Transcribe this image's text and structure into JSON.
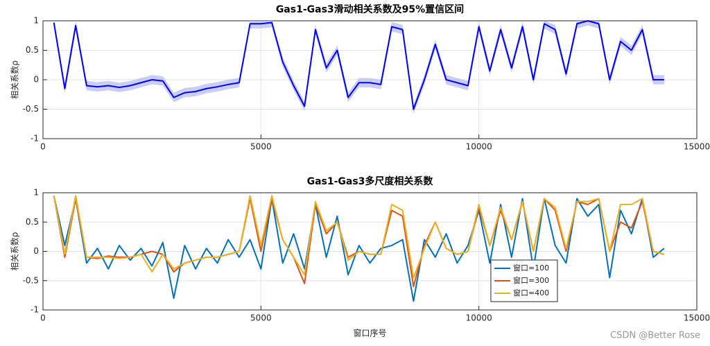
{
  "chart_data": [
    {
      "type": "line",
      "title": "Gas1-Gas3滑动相关系数及95%置信区间",
      "ylabel": "相关系数ρ",
      "x": [
        250,
        500,
        750,
        1000,
        1250,
        1500,
        1750,
        2000,
        2250,
        2500,
        2750,
        3000,
        3250,
        3500,
        3750,
        4000,
        4250,
        4500,
        4750,
        5000,
        5250,
        5500,
        5750,
        6000,
        6250,
        6500,
        6750,
        7000,
        7250,
        7500,
        7750,
        8000,
        8250,
        8500,
        8750,
        9000,
        9250,
        9500,
        9750,
        10000,
        10250,
        10500,
        10750,
        11000,
        11250,
        11500,
        11750,
        12000,
        12250,
        12500,
        12750,
        13000,
        13250,
        13500,
        13750,
        14000,
        14250
      ],
      "series": [
        {
          "color": "#0000ff",
          "values": [
            0.97,
            -0.15,
            0.92,
            -0.1,
            -0.12,
            -0.1,
            -0.13,
            -0.1,
            -0.05,
            0.0,
            -0.02,
            -0.3,
            -0.22,
            -0.2,
            -0.15,
            -0.12,
            -0.08,
            -0.05,
            0.95,
            0.95,
            0.97,
            0.3,
            -0.1,
            -0.45,
            0.85,
            0.2,
            0.5,
            -0.3,
            -0.05,
            -0.05,
            -0.08,
            0.9,
            0.85,
            -0.5,
            0.0,
            0.6,
            0.0,
            -0.05,
            -0.1,
            0.9,
            0.15,
            0.85,
            0.2,
            0.9,
            0.0,
            0.95,
            0.85,
            0.1,
            0.95,
            1.0,
            0.95,
            0.0,
            0.65,
            0.5,
            0.85,
            0.0,
            0.0
          ]
        }
      ],
      "band": {
        "color": "#b4b8f4",
        "upper": [
          1.0,
          -0.07,
          1.0,
          -0.02,
          -0.04,
          -0.02,
          -0.05,
          -0.02,
          0.03,
          0.08,
          0.06,
          -0.22,
          -0.14,
          -0.12,
          -0.07,
          -0.04,
          0.0,
          0.03,
          1.0,
          1.0,
          1.0,
          0.38,
          -0.02,
          -0.37,
          0.93,
          0.28,
          0.58,
          -0.22,
          0.03,
          0.03,
          0.0,
          0.98,
          0.93,
          -0.42,
          0.08,
          0.68,
          0.08,
          0.03,
          -0.02,
          0.98,
          0.23,
          0.93,
          0.28,
          0.98,
          0.08,
          1.0,
          0.93,
          0.18,
          1.0,
          1.0,
          1.0,
          0.08,
          0.73,
          0.58,
          0.93,
          0.08,
          0.08
        ],
        "lower": [
          0.89,
          -0.23,
          0.84,
          -0.18,
          -0.2,
          -0.18,
          -0.21,
          -0.18,
          -0.13,
          -0.08,
          -0.1,
          -0.38,
          -0.3,
          -0.28,
          -0.23,
          -0.2,
          -0.16,
          -0.13,
          0.87,
          0.87,
          0.89,
          0.22,
          -0.18,
          -0.53,
          0.77,
          0.12,
          0.42,
          -0.38,
          -0.13,
          -0.13,
          -0.16,
          0.82,
          0.77,
          -0.58,
          -0.08,
          0.52,
          -0.08,
          -0.13,
          -0.18,
          0.82,
          0.07,
          0.77,
          0.12,
          0.82,
          -0.08,
          0.87,
          0.77,
          0.02,
          0.87,
          0.92,
          0.87,
          -0.08,
          0.57,
          0.42,
          0.77,
          -0.08,
          -0.08
        ]
      },
      "xlim": [
        0,
        15000
      ],
      "xticks": [
        0,
        5000,
        10000,
        15000
      ],
      "ylim": [
        -1,
        1
      ],
      "yticks": [
        -1,
        -0.5,
        0,
        0.5,
        1
      ],
      "grid": true
    },
    {
      "type": "line",
      "title": "Gas1-Gas3多尺度相关系数",
      "ylabel": "相关系数ρ",
      "xlabel": "窗口序号",
      "x": [
        250,
        500,
        750,
        1000,
        1250,
        1500,
        1750,
        2000,
        2250,
        2500,
        2750,
        3000,
        3250,
        3500,
        3750,
        4000,
        4250,
        4500,
        4750,
        5000,
        5250,
        5500,
        5750,
        6000,
        6250,
        6500,
        6750,
        7000,
        7250,
        7500,
        7750,
        8000,
        8250,
        8500,
        8750,
        9000,
        9250,
        9500,
        9750,
        10000,
        10250,
        10500,
        10750,
        11000,
        11250,
        11500,
        11750,
        12000,
        12250,
        12500,
        12750,
        13000,
        13250,
        13500,
        13750,
        14000,
        14250
      ],
      "series": [
        {
          "name": "窗口=100",
          "color": "#0072bd",
          "values": [
            0.95,
            0.1,
            0.9,
            -0.2,
            0.05,
            -0.3,
            0.1,
            -0.15,
            0.05,
            -0.25,
            0.15,
            -0.8,
            0.1,
            -0.3,
            0.05,
            -0.2,
            0.2,
            -0.1,
            0.2,
            -0.3,
            0.9,
            -0.2,
            0.3,
            -0.3,
            0.8,
            -0.1,
            0.6,
            -0.4,
            0.1,
            -0.2,
            0.05,
            0.1,
            0.2,
            -0.85,
            0.2,
            -0.1,
            0.3,
            -0.2,
            0.1,
            0.7,
            -0.2,
            0.8,
            -0.1,
            0.9,
            -0.3,
            0.9,
            0.1,
            -0.2,
            0.9,
            0.6,
            0.8,
            -0.45,
            0.7,
            0.3,
            0.9,
            -0.1,
            0.05
          ]
        },
        {
          "name": "窗口=300",
          "color": "#d95319",
          "values": [
            0.95,
            -0.1,
            0.9,
            -0.1,
            -0.12,
            -0.08,
            -0.1,
            -0.1,
            -0.05,
            0.0,
            -0.05,
            -0.35,
            -0.2,
            -0.15,
            -0.1,
            -0.1,
            -0.05,
            0.0,
            0.9,
            0.0,
            0.9,
            0.2,
            -0.1,
            -0.55,
            0.8,
            0.3,
            0.5,
            -0.1,
            0.0,
            -0.05,
            -0.05,
            0.7,
            0.6,
            -0.6,
            0.1,
            0.5,
            0.05,
            -0.05,
            0.0,
            0.75,
            0.1,
            0.7,
            0.2,
            0.85,
            0.0,
            0.9,
            0.7,
            0.0,
            0.85,
            0.8,
            0.9,
            0.0,
            0.5,
            0.4,
            0.85,
            0.0,
            -0.05
          ]
        },
        {
          "name": "窗口=400",
          "color": "#edb120",
          "values": [
            0.95,
            -0.05,
            0.95,
            -0.1,
            -0.1,
            -0.1,
            -0.12,
            -0.1,
            -0.05,
            -0.35,
            -0.05,
            -0.3,
            -0.2,
            -0.15,
            -0.1,
            -0.1,
            -0.05,
            0.0,
            0.95,
            0.1,
            0.95,
            0.2,
            -0.1,
            -0.4,
            0.85,
            0.35,
            0.5,
            -0.15,
            0.0,
            -0.05,
            -0.05,
            0.8,
            0.7,
            -0.45,
            0.05,
            0.5,
            0.05,
            -0.05,
            0.0,
            0.8,
            0.1,
            0.75,
            0.2,
            0.85,
            0.0,
            0.9,
            0.75,
            0.05,
            0.85,
            0.85,
            0.9,
            0.0,
            0.8,
            0.8,
            0.9,
            0.0,
            -0.05
          ]
        }
      ],
      "xlim": [
        0,
        15000
      ],
      "xticks": [
        0,
        5000,
        10000,
        15000
      ],
      "ylim": [
        -1,
        1
      ],
      "yticks": [
        -1,
        -0.5,
        0,
        0.5,
        1
      ],
      "grid": true,
      "legend": "lower center"
    }
  ],
  "watermark": "CSDN @Better Rose"
}
